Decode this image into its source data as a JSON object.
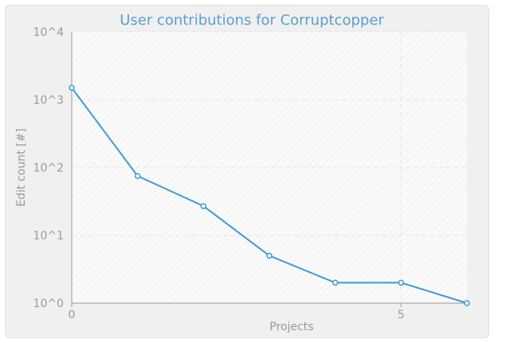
{
  "chart_data": {
    "type": "line",
    "title": "User contributions for Corruptcopper",
    "xlabel": "Projects",
    "ylabel": "Edit count [#]",
    "yscale": "log",
    "ylim": [
      1,
      10000
    ],
    "xlim": [
      0,
      6
    ],
    "x_ticks": [
      {
        "value": 0,
        "label": "0"
      },
      {
        "value": 5,
        "label": "5"
      }
    ],
    "y_ticks": [
      {
        "value": 1,
        "label": "10^0"
      },
      {
        "value": 10,
        "label": "10^1"
      },
      {
        "value": 100,
        "label": "10^2"
      },
      {
        "value": 1000,
        "label": "10^3"
      },
      {
        "value": 10000,
        "label": "10^4"
      }
    ],
    "grid": true,
    "line_color": "#3d9bd6",
    "series": [
      {
        "x": [
          0,
          1,
          2,
          3,
          4,
          5,
          6
        ],
        "values": [
          1500,
          75,
          27,
          5,
          2,
          2,
          1
        ]
      }
    ]
  }
}
